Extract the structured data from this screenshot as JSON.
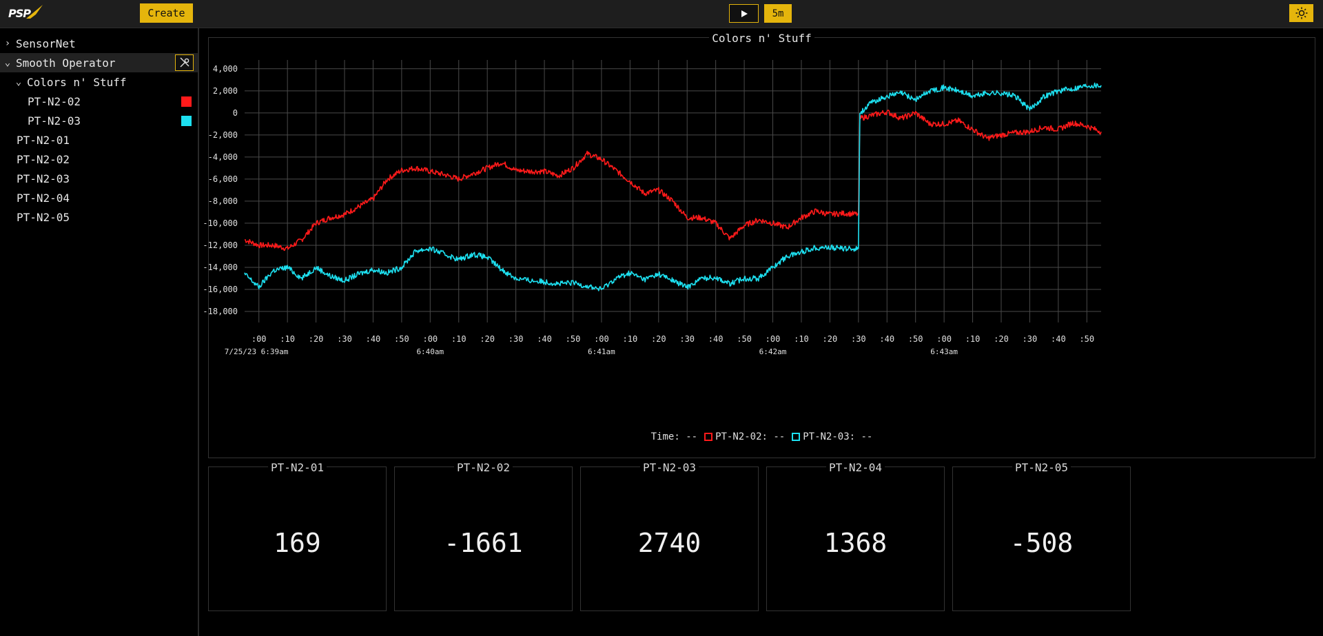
{
  "header": {
    "logo_text": "PSP",
    "create_label": "Create",
    "range_label": "5m",
    "play_icon": "play-icon",
    "theme_icon": "sun-icon"
  },
  "sidebar": {
    "items": [
      {
        "label": "SensorNet",
        "expanded": false
      },
      {
        "label": "Smooth Operator",
        "expanded": true,
        "selected": true
      },
      {
        "label": "Colors n' Stuff",
        "expanded": true
      },
      {
        "label": "PT-N2-02",
        "color": "#ff1a1a"
      },
      {
        "label": "PT-N2-03",
        "color": "#1de0f0"
      },
      {
        "label": "PT-N2-01"
      },
      {
        "label": "PT-N2-02"
      },
      {
        "label": "PT-N2-03"
      },
      {
        "label": "PT-N2-04"
      },
      {
        "label": "PT-N2-05"
      }
    ]
  },
  "chart_panel": {
    "title": "Colors n' Stuff",
    "legend": {
      "time_label": "Time: --",
      "series_labels": [
        "PT-N2-02: --",
        "PT-N2-03: --"
      ]
    }
  },
  "chart_data": {
    "type": "line",
    "title": "Colors n' Stuff",
    "x_unit": "seconds after 6:39:00am",
    "xlim": [
      -5,
      295
    ],
    "ylim": [
      -19000,
      4800
    ],
    "grid": true,
    "y_ticks": [
      4000,
      2000,
      0,
      -2000,
      -4000,
      -6000,
      -8000,
      -10000,
      -12000,
      -14000,
      -16000,
      -18000
    ],
    "y_tick_labels": [
      "4,000",
      "2,000",
      "0",
      "-2,000",
      "-4,000",
      "-6,000",
      "-8,000",
      "-10,000",
      "-12,000",
      "-14,000",
      "-16,000",
      "-18,000"
    ],
    "x_tick_labels": [
      ":00",
      ":10",
      ":20",
      ":30",
      ":40",
      ":50",
      ":00",
      ":10",
      ":20",
      ":30",
      ":40",
      ":50",
      ":00",
      ":10",
      ":20",
      ":30",
      ":40",
      ":50",
      ":00",
      ":10",
      ":20",
      ":30",
      ":40",
      ":50",
      ":00",
      ":10",
      ":20",
      ":30",
      ":40",
      ":50"
    ],
    "date_labels": [
      {
        "at": 0,
        "text": "7/25/23 6:39am"
      },
      {
        "at": 60,
        "text": "6:40am"
      },
      {
        "at": 120,
        "text": "6:41am"
      },
      {
        "at": 180,
        "text": "6:42am"
      },
      {
        "at": 240,
        "text": "6:43am"
      }
    ],
    "series": [
      {
        "name": "PT-N2-02",
        "color": "#ff1a1a",
        "x": [
          -5,
          0,
          5,
          10,
          15,
          20,
          25,
          30,
          35,
          40,
          45,
          50,
          55,
          60,
          65,
          70,
          75,
          80,
          85,
          90,
          95,
          100,
          105,
          110,
          115,
          120,
          125,
          130,
          135,
          140,
          145,
          150,
          155,
          160,
          165,
          170,
          175,
          180,
          185,
          190,
          195,
          200,
          205,
          210,
          210.5,
          215,
          220,
          225,
          230,
          235,
          240,
          245,
          250,
          255,
          260,
          265,
          270,
          275,
          280,
          285,
          290,
          295
        ],
        "y": [
          -11500,
          -12000,
          -12000,
          -12300,
          -11500,
          -10000,
          -9500,
          -9200,
          -8500,
          -7800,
          -6000,
          -5200,
          -5000,
          -5300,
          -5600,
          -6000,
          -5500,
          -5000,
          -4500,
          -5200,
          -5300,
          -5300,
          -5700,
          -5000,
          -3700,
          -4200,
          -5200,
          -6200,
          -7300,
          -7000,
          -8000,
          -9500,
          -9500,
          -10000,
          -11400,
          -10200,
          -9700,
          -10000,
          -10400,
          -9500,
          -8900,
          -9200,
          -9100,
          -9200,
          -500,
          -200,
          100,
          -500,
          0,
          -1000,
          -1000,
          -700,
          -1500,
          -2300,
          -2000,
          -1800,
          -1700,
          -1300,
          -1500,
          -900,
          -1200,
          -1700
        ]
      },
      {
        "name": "PT-N2-03",
        "color": "#1de0f0",
        "x": [
          -5,
          0,
          5,
          10,
          15,
          20,
          25,
          30,
          35,
          40,
          45,
          50,
          55,
          60,
          65,
          70,
          75,
          80,
          85,
          90,
          95,
          100,
          105,
          110,
          115,
          120,
          125,
          130,
          135,
          140,
          145,
          150,
          155,
          160,
          165,
          170,
          175,
          180,
          185,
          190,
          195,
          200,
          205,
          210,
          210.5,
          215,
          220,
          225,
          230,
          235,
          240,
          245,
          250,
          255,
          260,
          265,
          270,
          275,
          280,
          285,
          290,
          295
        ],
        "y": [
          -14600,
          -15800,
          -14300,
          -14000,
          -15000,
          -14000,
          -14800,
          -15200,
          -14600,
          -14200,
          -14500,
          -14000,
          -12500,
          -12300,
          -12800,
          -13300,
          -12800,
          -13100,
          -14200,
          -15000,
          -15200,
          -15300,
          -15500,
          -15400,
          -15700,
          -16000,
          -15000,
          -14500,
          -15100,
          -14600,
          -15200,
          -15800,
          -15000,
          -14900,
          -15500,
          -15000,
          -15000,
          -14000,
          -13000,
          -12600,
          -12200,
          -12200,
          -12300,
          -12300,
          0,
          1000,
          1500,
          1800,
          1200,
          2000,
          2300,
          2000,
          1500,
          1800,
          1800,
          1500,
          300,
          1500,
          2000,
          2200,
          2500,
          2500
        ]
      }
    ]
  },
  "tiles": [
    {
      "title": "PT-N2-01",
      "value": "169"
    },
    {
      "title": "PT-N2-02",
      "value": "-1661"
    },
    {
      "title": "PT-N2-03",
      "value": "2740"
    },
    {
      "title": "PT-N2-04",
      "value": "1368"
    },
    {
      "title": "PT-N2-05",
      "value": "-508"
    }
  ],
  "colors": {
    "accent": "#e5b50c",
    "series_red": "#ff1a1a",
    "series_cyan": "#1de0f0"
  }
}
